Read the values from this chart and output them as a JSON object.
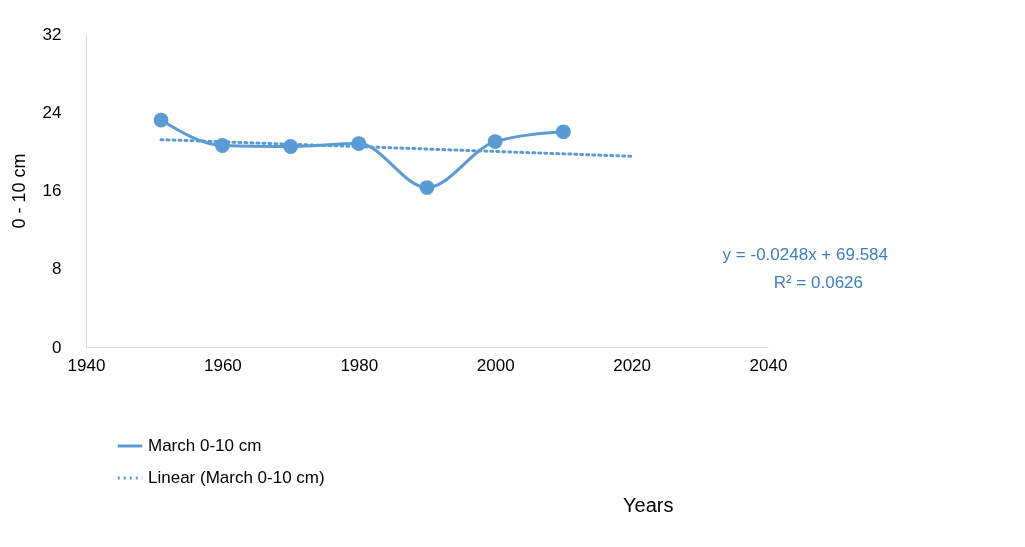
{
  "chart_data": {
    "type": "line",
    "ylabel": "0 - 10 cm",
    "xlim": [
      1940,
      2040
    ],
    "xticks": [
      1940,
      1960,
      1980,
      2000,
      2020,
      2040
    ],
    "ylim": [
      0,
      32
    ],
    "yticks": [
      0,
      8,
      16,
      24,
      32
    ],
    "grid": false,
    "legend": "bottom left",
    "series": [
      {
        "name": "March 0-10 cm",
        "color": "#5b9bd5",
        "x": [
          1951,
          1960,
          1970,
          1980,
          1990,
          2000,
          2010
        ],
        "values": [
          23.2,
          20.6,
          20.5,
          20.8,
          16.3,
          21.0,
          22.0
        ],
        "marker": "circle",
        "line_style": "solid"
      },
      {
        "name": "Linear (March 0-10 cm)",
        "color": "#5b9bd5",
        "x": [
          1951,
          2020
        ],
        "values": [
          21.2,
          19.5
        ],
        "marker": "none",
        "line_style": "dotted"
      }
    ],
    "annotations": [
      "y = -0.0248x + 69.584",
      "R² = 0.0626",
      "Years"
    ]
  }
}
